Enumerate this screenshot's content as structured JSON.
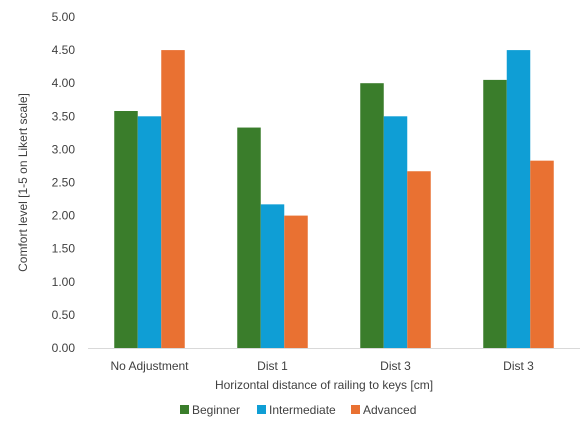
{
  "chart_data": {
    "type": "bar",
    "categories": [
      "No Adjustment",
      "Dist 1",
      "Dist 3",
      "Dist 3"
    ],
    "series": [
      {
        "name": "Beginner",
        "values": [
          3.58,
          3.33,
          4.0,
          4.05
        ],
        "color": "#3a7d2b"
      },
      {
        "name": "Intermediate",
        "values": [
          3.5,
          2.17,
          3.5,
          4.5
        ],
        "color": "#0f9ed5"
      },
      {
        "name": "Advanced",
        "values": [
          4.5,
          2.0,
          2.67,
          2.83
        ],
        "color": "#e97132"
      }
    ],
    "xlabel": "Horizontal distance of railing to keys [cm]",
    "ylabel": "Comfort level [1-5 on Likert scale]",
    "ylim": [
      0,
      5
    ],
    "yticks": [
      "0.00",
      "0.50",
      "1.00",
      "1.50",
      "2.00",
      "2.50",
      "3.00",
      "3.50",
      "4.00",
      "4.50",
      "5.00"
    ],
    "grid": false,
    "legend": "bottom"
  }
}
